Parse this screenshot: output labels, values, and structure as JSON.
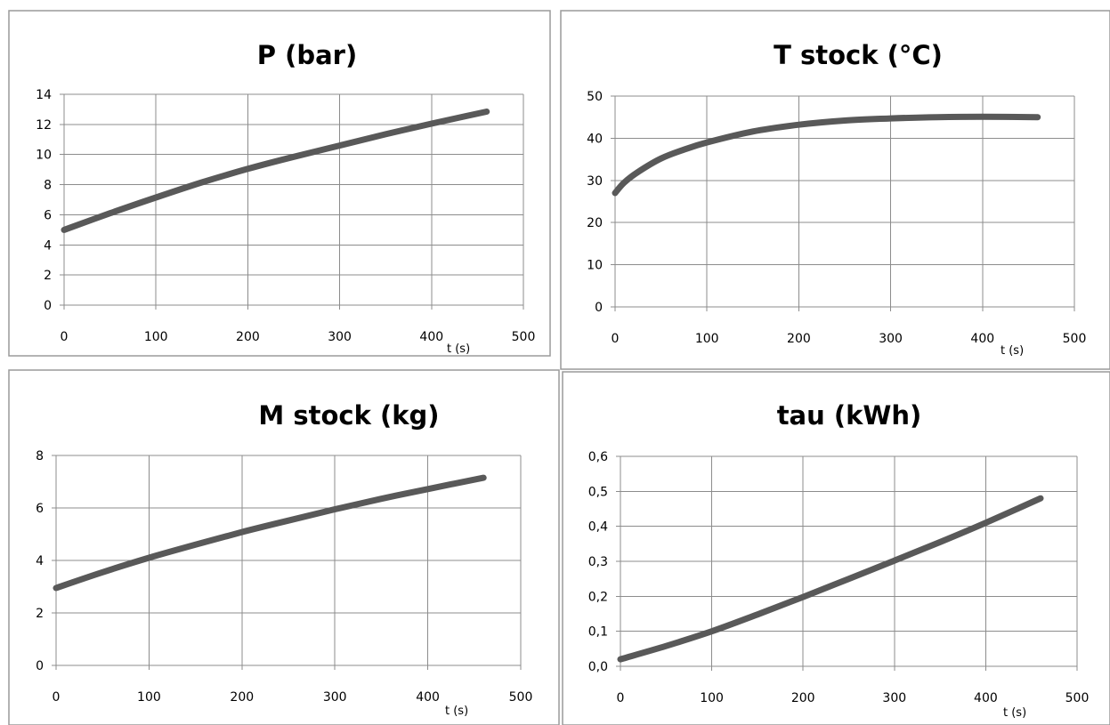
{
  "chart_data": [
    {
      "type": "line",
      "title": "P (bar)",
      "xlabel": "t (s)",
      "ylabel": "",
      "xlim": [
        0,
        500
      ],
      "ylim": [
        0,
        14
      ],
      "x_ticks": [
        "0",
        "100",
        "200",
        "300",
        "400",
        "500"
      ],
      "y_ticks": [
        "0",
        "2",
        "4",
        "6",
        "8",
        "10",
        "12",
        "14"
      ],
      "grid": true,
      "series": [
        {
          "x": [
            0,
            50,
            100,
            150,
            200,
            250,
            300,
            350,
            400,
            460
          ],
          "y": [
            5.0,
            6.1,
            7.15,
            8.15,
            9.05,
            9.85,
            10.6,
            11.35,
            12.05,
            12.85
          ]
        }
      ]
    },
    {
      "type": "line",
      "title": "T stock (°C)",
      "xlabel": "t (s)",
      "ylabel": "",
      "xlim": [
        0,
        500
      ],
      "ylim": [
        0,
        50
      ],
      "x_ticks": [
        "0",
        "100",
        "200",
        "300",
        "400",
        "500"
      ],
      "y_ticks": [
        "0",
        "10",
        "20",
        "30",
        "40",
        "50"
      ],
      "grid": true,
      "series": [
        {
          "x": [
            0,
            10,
            25,
            50,
            75,
            100,
            150,
            200,
            250,
            300,
            350,
            400,
            460
          ],
          "y": [
            27,
            29.5,
            32,
            35.2,
            37.3,
            39,
            41.6,
            43.2,
            44.2,
            44.7,
            45,
            45.1,
            45
          ]
        }
      ]
    },
    {
      "type": "line",
      "title": "M stock (kg)",
      "xlabel": "t (s)",
      "ylabel": "",
      "xlim": [
        0,
        500
      ],
      "ylim": [
        0,
        8
      ],
      "x_ticks": [
        "0",
        "100",
        "200",
        "300",
        "400",
        "500"
      ],
      "y_ticks": [
        "0",
        "2",
        "4",
        "6",
        "8"
      ],
      "grid": true,
      "series": [
        {
          "x": [
            0,
            50,
            100,
            150,
            200,
            250,
            300,
            350,
            400,
            460
          ],
          "y": [
            2.95,
            3.55,
            4.1,
            4.6,
            5.08,
            5.52,
            5.95,
            6.35,
            6.72,
            7.15
          ]
        }
      ]
    },
    {
      "type": "line",
      "title": "tau (kWh)",
      "xlabel": "t (s)",
      "ylabel": "",
      "xlim": [
        0,
        500
      ],
      "ylim": [
        0,
        0.6
      ],
      "x_ticks": [
        "0",
        "100",
        "200",
        "300",
        "400",
        "500"
      ],
      "y_ticks": [
        "0,0",
        "0,1",
        "0,2",
        "0,3",
        "0,4",
        "0,5",
        "0,6"
      ],
      "grid": true,
      "series": [
        {
          "x": [
            0,
            50,
            100,
            150,
            200,
            250,
            300,
            350,
            400,
            460
          ],
          "y": [
            0.02,
            0.058,
            0.1,
            0.148,
            0.198,
            0.25,
            0.302,
            0.355,
            0.41,
            0.48
          ]
        }
      ]
    }
  ],
  "colors": {
    "series_line": "#595959",
    "grid": "#8c8c8c",
    "frame": "#9a9a9a"
  }
}
